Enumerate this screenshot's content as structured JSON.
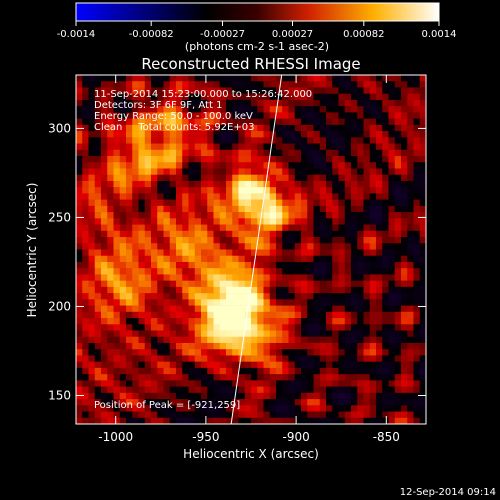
{
  "colorbar": {
    "ticks": [
      "-0.0014",
      "-0.00082",
      "-0.00027",
      "0.00027",
      "0.00082",
      "0.0014"
    ],
    "tick_values": [
      -0.0014,
      -0.00082,
      -0.00027,
      0.00027,
      0.00082,
      0.0014
    ],
    "range": [
      -0.0014,
      0.0014
    ],
    "units": "(photons cm-2 s-1 asec-2)",
    "colormap": "blue-black-red-yellow-white"
  },
  "chart_data": {
    "type": "heatmap",
    "title": "Reconstructed RHESSI Image",
    "xlabel": "Heliocentric X (arcsec)",
    "ylabel": "Heliocentric Y (arcsec)",
    "xlim": [
      -1022,
      -828
    ],
    "ylim": [
      134,
      330
    ],
    "x_ticks": [
      -1000,
      -950,
      -900,
      -850
    ],
    "y_ticks": [
      150,
      200,
      250,
      300
    ],
    "x_tick_labels": [
      "-1000",
      "-950",
      "-900",
      "-850"
    ],
    "y_tick_labels": [
      "150",
      "200",
      "250",
      "300"
    ],
    "limb_line": [
      [
        -936,
        134
      ],
      [
        -908,
        330
      ]
    ],
    "peak": [
      -921,
      259
    ],
    "sources": [
      {
        "x": -921,
        "y": 259,
        "strength": 1.0
      },
      {
        "x": -931,
        "y": 187,
        "strength": 0.9
      },
      {
        "x": -935,
        "y": 205,
        "strength": 0.7
      },
      {
        "x": -958,
        "y": 232,
        "strength": 0.55
      },
      {
        "x": -988,
        "y": 283,
        "strength": 0.5
      },
      {
        "x": -996,
        "y": 212,
        "strength": 0.45
      },
      {
        "x": -1010,
        "y": 250,
        "strength": 0.4
      },
      {
        "x": -968,
        "y": 300,
        "strength": 0.45
      }
    ],
    "annotations": [
      "11-Sep-2014 15:23:00.000 to 15:26:42.000",
      "Detectors: 3F 6F 9F, Att 1",
      "Energy Range: 50.0 - 100.0 keV",
      "Clean     Total counts: 5.92E+03"
    ],
    "peak_label": "Position of Peak = [-921,259]"
  },
  "footer": {
    "timestamp": "12-Sep-2014 09:14"
  }
}
